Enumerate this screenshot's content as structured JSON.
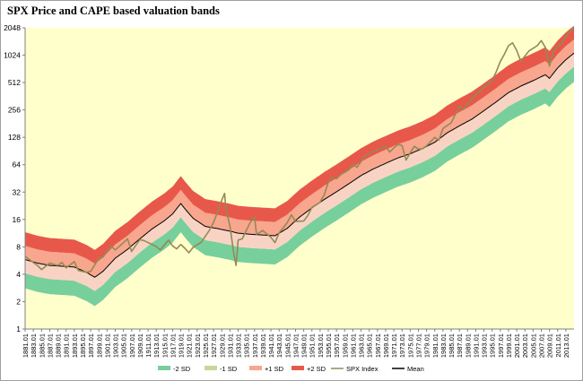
{
  "chart_data": {
    "type": "area",
    "title": "SPX Price and CAPE based valuation bands",
    "y_scale": "log2",
    "ylim": [
      1,
      2048
    ],
    "y_ticks": [
      1,
      2,
      4,
      8,
      16,
      32,
      64,
      128,
      256,
      512,
      1024,
      2048
    ],
    "x_range": [
      1881,
      2015
    ],
    "x_tick_labels": [
      "1881.01",
      "1883.01",
      "1885.01",
      "1887.01",
      "1889.01",
      "1891.01",
      "1893.01",
      "1895.01",
      "1897.01",
      "1899.01",
      "1901.01",
      "1903.01",
      "1905.01",
      "1907.01",
      "1909.01",
      "1911.01",
      "1913.01",
      "1915.01",
      "1917.01",
      "1919.01",
      "1921.01",
      "1923.01",
      "1925.01",
      "1927.01",
      "1929.01",
      "1931.01",
      "1933.01",
      "1935.01",
      "1937.01",
      "1939.01",
      "1941.01",
      "1943.01",
      "1945.01",
      "1947.01",
      "1949.01",
      "1951.01",
      "1953.01",
      "1955.01",
      "1957.01",
      "1959.01",
      "1961.01",
      "1963.01",
      "1965.01",
      "1967.01",
      "1969.01",
      "1971.01",
      "1973.01",
      "1975.01",
      "1977.01",
      "1979.01",
      "1981.01",
      "1983.01",
      "1985.01",
      "1987.01",
      "1989.01",
      "1991.01",
      "1993.01",
      "1995.01",
      "1997.01",
      "1999.01",
      "2001.01",
      "2003.01",
      "2005.01",
      "2007.01",
      "2009.01",
      "2011.01",
      "2013.01"
    ],
    "band_offsets_log2": {
      "minus2": -1.05,
      "minus1": -0.5,
      "plus1": 0.5,
      "plus2": 1.0
    },
    "mean": {
      "name": "Mean",
      "color": "#000000",
      "x": [
        1881,
        1884,
        1887,
        1890,
        1893,
        1896,
        1898,
        1900,
        1903,
        1906,
        1909,
        1912,
        1915,
        1917,
        1919,
        1920,
        1922,
        1925,
        1928,
        1931,
        1933,
        1936,
        1939,
        1942,
        1945,
        1948,
        1951,
        1954,
        1957,
        1960,
        1963,
        1966,
        1969,
        1972,
        1975,
        1978,
        1981,
        1984,
        1987,
        1990,
        1993,
        1996,
        1999,
        2002,
        2005,
        2008,
        2009,
        2011,
        2013,
        2015
      ],
      "y": [
        5.8,
        5.3,
        5.0,
        4.9,
        4.8,
        4.2,
        3.7,
        4.3,
        6.0,
        7.5,
        9.8,
        12.6,
        15.5,
        18.4,
        24,
        21,
        16.5,
        13.4,
        12.7,
        11.9,
        11.3,
        11.0,
        10.8,
        10.6,
        12.8,
        17.0,
        21.4,
        26.5,
        32.2,
        39.4,
        48.6,
        57.5,
        66.2,
        75.9,
        84.4,
        96.3,
        113,
        143,
        171,
        202,
        251,
        314,
        397,
        468,
        537,
        624,
        569,
        741,
        912,
        1080
      ]
    },
    "price": {
      "name": "SPX Index",
      "color": "#948a54",
      "x": [
        1881,
        1882,
        1884,
        1885,
        1887,
        1889,
        1890,
        1891,
        1893,
        1894,
        1896,
        1897,
        1899,
        1900,
        1902,
        1903,
        1905,
        1906,
        1907,
        1909,
        1910,
        1913,
        1914,
        1916,
        1917,
        1918,
        1919,
        1920,
        1921,
        1922,
        1924,
        1926,
        1927,
        1928,
        1929,
        1929.7,
        1930,
        1931,
        1932,
        1932.5,
        1933,
        1934,
        1936,
        1937,
        1937.5,
        1938,
        1939,
        1941,
        1942,
        1943,
        1945,
        1946,
        1947,
        1949,
        1950,
        1951,
        1953,
        1954,
        1955,
        1956,
        1957,
        1958,
        1960,
        1961,
        1962,
        1964,
        1966,
        1967,
        1968,
        1969,
        1970,
        1971,
        1972,
        1973,
        1974,
        1975,
        1976,
        1977,
        1978,
        1979,
        1980,
        1981,
        1982,
        1983,
        1985,
        1987,
        1988,
        1990,
        1991,
        1993,
        1995,
        1996,
        1997,
        1998,
        1999,
        2000,
        2001,
        2002,
        2003,
        2004,
        2006,
        2007,
        2008,
        2009,
        2010,
        2011,
        2012,
        2013,
        2014,
        2015
      ],
      "y": [
        6.3,
        5.8,
        5.0,
        4.5,
        5.3,
        5.0,
        5.4,
        4.7,
        5.5,
        4.4,
        4.2,
        4.3,
        6.0,
        6.2,
        8.2,
        7.4,
        8.9,
        9.8,
        7.1,
        9.6,
        9.4,
        8.1,
        7.4,
        9.5,
        8.2,
        7.6,
        8.5,
        7.7,
        6.9,
        7.9,
        9.0,
        12.2,
        14.9,
        19.5,
        26.0,
        31.0,
        21.0,
        13.5,
        6.5,
        5.0,
        9.5,
        9.8,
        15.0,
        17.0,
        11.0,
        11.3,
        12.1,
        10.2,
        8.9,
        11.4,
        14.8,
        18.0,
        15.2,
        15.4,
        17.6,
        21.7,
        24.7,
        29.7,
        41.2,
        46.0,
        44.7,
        49.8,
        56.0,
        65.0,
        60.0,
        80.0,
        90.0,
        93.0,
        97.0,
        102.0,
        88.0,
        98.0,
        107.0,
        104.0,
        72.0,
        86.0,
        102.0,
        95.0,
        96.0,
        103.0,
        115.0,
        128.0,
        119.0,
        160.0,
        185.0,
        280.0,
        258.0,
        340.0,
        380.0,
        450.0,
        540.0,
        670.0,
        870.0,
        1050.0,
        1300.0,
        1400.0,
        1150.0,
        880.0,
        1000.0,
        1140.0,
        1300.0,
        1480.0,
        1250.0,
        780.0,
        1120.0,
        1290.0,
        1380.0,
        1650.0,
        1900.0,
        2050.0
      ]
    },
    "legend": [
      {
        "label": "-2 SD",
        "color": "#77cf9c",
        "kind": "patch"
      },
      {
        "label": "-1 SD",
        "color": "#c4d79b",
        "kind": "patch"
      },
      {
        "label": "+1 SD",
        "color": "#f8a68e",
        "kind": "patch"
      },
      {
        "label": "+2 SD",
        "color": "#e8584a",
        "kind": "patch"
      },
      {
        "label": "SPX Index",
        "color": "#948a54",
        "kind": "line"
      },
      {
        "label": "Mean",
        "color": "#000000",
        "kind": "line"
      }
    ],
    "legend_position": "bottom",
    "background_color": "#ffffcc",
    "grid": false
  }
}
